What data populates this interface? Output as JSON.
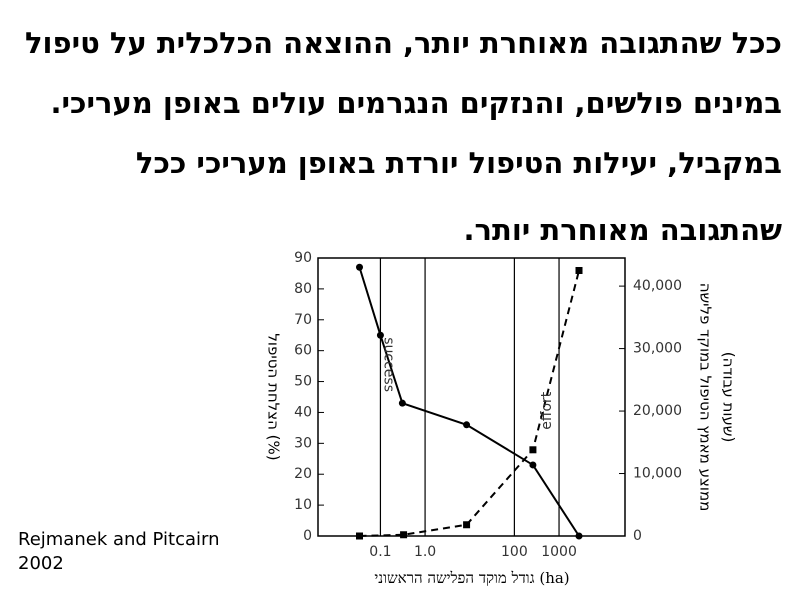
{
  "text_lines": [
    "ככל שהתגובה מאוחרת יותר, ההוצאה הכלכלית על טיפול",
    "במינים פולשים, והנזקים הנגרמים עולים באופן מעריכי.",
    "במקביל, יעילות הטיפול יורדת באופן מעריכי ככל",
    "שהתגובה מאוחרת יותר."
  ],
  "citation": [
    "Rejmanek and Pitcairn",
    "2002"
  ],
  "chart_data": {
    "type": "line",
    "x_label": "גודל מוקד הפלישה הראשוני (ha)",
    "y_label": "הצלחת הטיפול (%)",
    "y2_label": [
      "ממוצע מאמץ הטיפול במוקד פלישה",
      "(שעות עבודה)"
    ],
    "x_scale": "log",
    "xlim": [
      0.004,
      30000
    ],
    "xticks": [
      0.1,
      {
        "value": 1,
        "label": "1.0"
      },
      100,
      1000
    ],
    "ylim": [
      0,
      90
    ],
    "yticks": [
      0,
      10,
      20,
      30,
      40,
      50,
      60,
      70,
      80,
      90
    ],
    "y2lim": [
      0,
      44500
    ],
    "y2ticks": [
      0,
      {
        "value": 10000,
        "label": "10,000"
      },
      {
        "value": 20000,
        "label": "20,000"
      },
      {
        "value": 30000,
        "label": "30,000"
      },
      {
        "value": 40000,
        "label": "40,000"
      }
    ],
    "grid": "x",
    "series": [
      {
        "name": "success",
        "color": "#000000",
        "dash": "solid",
        "marker": "circle",
        "x": [
          0.034,
          0.1,
          0.31,
          8.5,
          260,
          2800
        ],
        "values": [
          87,
          65,
          43,
          36,
          23,
          0
        ]
      },
      {
        "name": "effort",
        "color": "#000000",
        "dash": "dashed",
        "marker": "square",
        "axis": "y2",
        "x": [
          0.034,
          0.33,
          8.5,
          260,
          2800
        ],
        "values": [
          0,
          200,
          1800,
          13800,
          42500
        ]
      }
    ]
  }
}
